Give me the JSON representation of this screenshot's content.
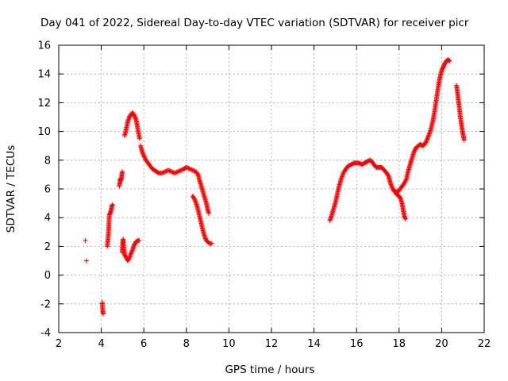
{
  "chart_data": {
    "type": "scatter",
    "title": "Day 041 of 2022, Sidereal Day-to-day VTEC variation (SDTVAR) for receiver picr",
    "xlabel": "GPS time / hours",
    "ylabel": "SDTVAR / TECUs",
    "xlim": [
      2,
      22
    ],
    "ylim": [
      -4,
      16
    ],
    "xticks": [
      "2",
      "4",
      "6",
      "8",
      "10",
      "12",
      "14",
      "16",
      "18",
      "20",
      "22"
    ],
    "yticks": [
      "-4",
      "-2",
      "0",
      "2",
      "4",
      "6",
      "8",
      "10",
      "12",
      "14",
      "16"
    ],
    "grid": true,
    "marker": "+",
    "color": "#ff0000",
    "series": [
      {
        "name": "SDTVAR",
        "segments": [
          [
            [
              3.25,
              2.4
            ]
          ],
          [
            [
              3.3,
              1.0
            ]
          ],
          [
            [
              4.05,
              -1.9
            ],
            [
              4.07,
              -2.5
            ],
            [
              4.09,
              -2.7
            ]
          ],
          [
            [
              4.28,
              2.0
            ],
            [
              4.32,
              2.5
            ],
            [
              4.34,
              3.0
            ],
            [
              4.36,
              3.5
            ],
            [
              4.38,
              4.2
            ],
            [
              4.42,
              4.3
            ],
            [
              4.46,
              4.5
            ],
            [
              4.5,
              4.8
            ],
            [
              4.53,
              4.9
            ]
          ],
          [
            [
              4.85,
              6.2
            ],
            [
              4.88,
              6.5
            ],
            [
              4.9,
              6.7
            ],
            [
              4.93,
              6.6
            ],
            [
              4.96,
              6.9
            ],
            [
              4.99,
              7.2
            ]
          ],
          [
            [
              4.98,
              1.6
            ],
            [
              5.0,
              2.1
            ],
            [
              5.03,
              2.5
            ],
            [
              5.07,
              1.7
            ],
            [
              5.1,
              1.4
            ],
            [
              5.18,
              1.2
            ],
            [
              5.25,
              1.0
            ],
            [
              5.32,
              1.2
            ],
            [
              5.4,
              1.5
            ],
            [
              5.48,
              1.8
            ],
            [
              5.55,
              2.1
            ],
            [
              5.62,
              2.3
            ],
            [
              5.7,
              2.4
            ],
            [
              5.78,
              2.4
            ]
          ],
          [
            [
              5.1,
              9.7
            ],
            [
              5.18,
              10.2
            ],
            [
              5.25,
              10.7
            ],
            [
              5.32,
              11.0
            ],
            [
              5.4,
              11.2
            ],
            [
              5.48,
              11.3
            ],
            [
              5.55,
              11.1
            ],
            [
              5.62,
              10.9
            ],
            [
              5.68,
              10.5
            ],
            [
              5.74,
              10.0
            ],
            [
              5.8,
              9.5
            ]
          ],
          [
            [
              5.85,
              9.0
            ],
            [
              5.92,
              8.6
            ],
            [
              6.0,
              8.3
            ],
            [
              6.1,
              8.0
            ],
            [
              6.2,
              7.8
            ],
            [
              6.3,
              7.6
            ],
            [
              6.4,
              7.4
            ],
            [
              6.5,
              7.3
            ],
            [
              6.6,
              7.2
            ],
            [
              6.7,
              7.1
            ],
            [
              6.85,
              7.1
            ],
            [
              7.0,
              7.2
            ],
            [
              7.15,
              7.3
            ],
            [
              7.3,
              7.2
            ],
            [
              7.45,
              7.1
            ],
            [
              7.6,
              7.2
            ],
            [
              7.75,
              7.3
            ],
            [
              7.9,
              7.4
            ],
            [
              8.0,
              7.5
            ],
            [
              8.15,
              7.4
            ],
            [
              8.3,
              7.3
            ],
            [
              8.45,
              7.2
            ],
            [
              8.55,
              7.0
            ],
            [
              8.62,
              6.6
            ],
            [
              8.7,
              6.2
            ],
            [
              8.78,
              5.8
            ],
            [
              8.86,
              5.4
            ],
            [
              8.94,
              5.0
            ],
            [
              9.0,
              4.6
            ],
            [
              9.05,
              4.3
            ]
          ],
          [
            [
              8.3,
              5.5
            ],
            [
              8.38,
              5.3
            ],
            [
              8.46,
              5.0
            ],
            [
              8.54,
              4.6
            ],
            [
              8.62,
              4.1
            ],
            [
              8.7,
              3.6
            ],
            [
              8.78,
              3.1
            ],
            [
              8.86,
              2.7
            ],
            [
              8.94,
              2.4
            ],
            [
              9.02,
              2.3
            ],
            [
              9.1,
              2.2
            ],
            [
              9.2,
              2.2
            ]
          ],
          [
            [
              14.75,
              3.8
            ],
            [
              14.82,
              4.1
            ],
            [
              14.9,
              4.5
            ],
            [
              14.98,
              4.9
            ],
            [
              15.05,
              5.3
            ],
            [
              15.12,
              5.8
            ],
            [
              15.2,
              6.3
            ],
            [
              15.28,
              6.7
            ],
            [
              15.38,
              7.1
            ],
            [
              15.5,
              7.4
            ],
            [
              15.62,
              7.6
            ],
            [
              15.75,
              7.7
            ],
            [
              15.88,
              7.8
            ],
            [
              16.0,
              7.8
            ],
            [
              16.12,
              7.8
            ],
            [
              16.25,
              7.7
            ],
            [
              16.38,
              7.8
            ],
            [
              16.5,
              7.9
            ],
            [
              16.62,
              8.0
            ],
            [
              16.72,
              7.9
            ],
            [
              16.82,
              7.7
            ],
            [
              16.92,
              7.5
            ],
            [
              17.05,
              7.5
            ],
            [
              17.18,
              7.5
            ],
            [
              17.3,
              7.3
            ],
            [
              17.42,
              7.1
            ],
            [
              17.5,
              6.9
            ],
            [
              17.56,
              6.6
            ],
            [
              17.62,
              6.3
            ],
            [
              17.7,
              6.0
            ],
            [
              17.8,
              5.8
            ],
            [
              17.9,
              5.6
            ],
            [
              18.0,
              5.5
            ],
            [
              18.08,
              5.3
            ],
            [
              18.15,
              4.9
            ],
            [
              18.2,
              4.5
            ],
            [
              18.25,
              4.1
            ],
            [
              18.3,
              3.9
            ]
          ],
          [
            [
              17.75,
              5.9
            ],
            [
              17.85,
              5.8
            ],
            [
              17.95,
              5.8
            ],
            [
              18.05,
              6.0
            ],
            [
              18.15,
              6.2
            ],
            [
              18.25,
              6.4
            ],
            [
              18.35,
              6.7
            ],
            [
              18.42,
              7.2
            ],
            [
              18.5,
              7.6
            ],
            [
              18.58,
              8.0
            ],
            [
              18.66,
              8.4
            ],
            [
              18.74,
              8.7
            ],
            [
              18.82,
              8.9
            ],
            [
              18.9,
              9.0
            ],
            [
              19.0,
              9.1
            ],
            [
              19.1,
              9.0
            ],
            [
              19.2,
              9.1
            ],
            [
              19.28,
              9.3
            ],
            [
              19.36,
              9.6
            ],
            [
              19.44,
              9.9
            ],
            [
              19.52,
              10.3
            ],
            [
              19.6,
              10.8
            ],
            [
              19.66,
              11.3
            ],
            [
              19.72,
              11.9
            ],
            [
              19.78,
              12.5
            ],
            [
              19.84,
              13.1
            ],
            [
              19.9,
              13.6
            ],
            [
              19.96,
              14.0
            ],
            [
              20.02,
              14.3
            ],
            [
              20.08,
              14.5
            ],
            [
              20.14,
              14.7
            ],
            [
              20.22,
              14.9
            ],
            [
              20.3,
              15.0
            ],
            [
              20.38,
              14.9
            ]
          ],
          [
            [
              20.7,
              13.2
            ],
            [
              20.74,
              12.8
            ],
            [
              20.78,
              12.3
            ],
            [
              20.82,
              11.8
            ],
            [
              20.86,
              11.3
            ],
            [
              20.9,
              10.8
            ],
            [
              20.94,
              10.4
            ],
            [
              20.98,
              10.0
            ],
            [
              21.02,
              9.7
            ],
            [
              21.06,
              9.4
            ]
          ]
        ]
      }
    ]
  }
}
